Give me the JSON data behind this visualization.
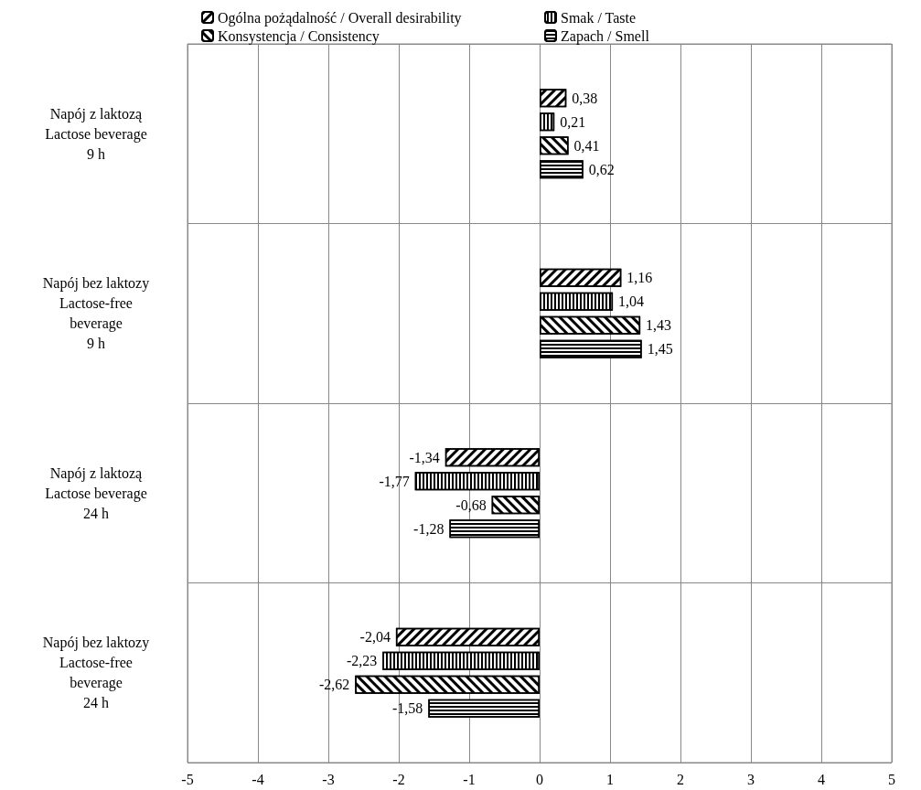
{
  "chart_data": {
    "type": "bar",
    "orientation": "horizontal",
    "categories": [
      "Napój z laktozą\nLactose beverage\n9 h",
      "Napój bez laktozy\nLactose-free\nbeverage\n9 h",
      "Napój z laktozą\nLactose beverage\n24 h",
      "Napój bez laktozy\nLactose-free\nbeverage\n24 h"
    ],
    "series": [
      {
        "name": "Ogólna pożądalność / Overall desirability",
        "color": "#000000",
        "values": [
          0.38,
          1.16,
          -1.34,
          -2.04
        ],
        "value_labels": [
          "0,38",
          "1,16",
          "-1,34",
          "-2,04"
        ]
      },
      {
        "name": "Smak / Taste",
        "color": "#000000",
        "values": [
          0.21,
          1.04,
          -1.77,
          -2.23
        ],
        "value_labels": [
          "0,21",
          "1,04",
          "-1,77",
          "-2,23"
        ]
      },
      {
        "name": "Konsystencja / Consistency",
        "color": "#000000",
        "values": [
          0.41,
          1.43,
          -0.68,
          -2.62
        ],
        "value_labels": [
          "0,41",
          "1,43",
          "-0,68",
          "-2,62"
        ]
      },
      {
        "name": "Zapach / Smell",
        "color": "#000000",
        "values": [
          0.62,
          1.45,
          -1.28,
          -1.58
        ],
        "value_labels": [
          "0,62",
          "1,45",
          "-1,28",
          "-1,58"
        ]
      }
    ],
    "xlim": [
      -5,
      5
    ],
    "xticks": [
      -5,
      -4,
      -3,
      -2,
      -1,
      0,
      1,
      2,
      3,
      4,
      5
    ],
    "grid": true,
    "legend": "top"
  }
}
